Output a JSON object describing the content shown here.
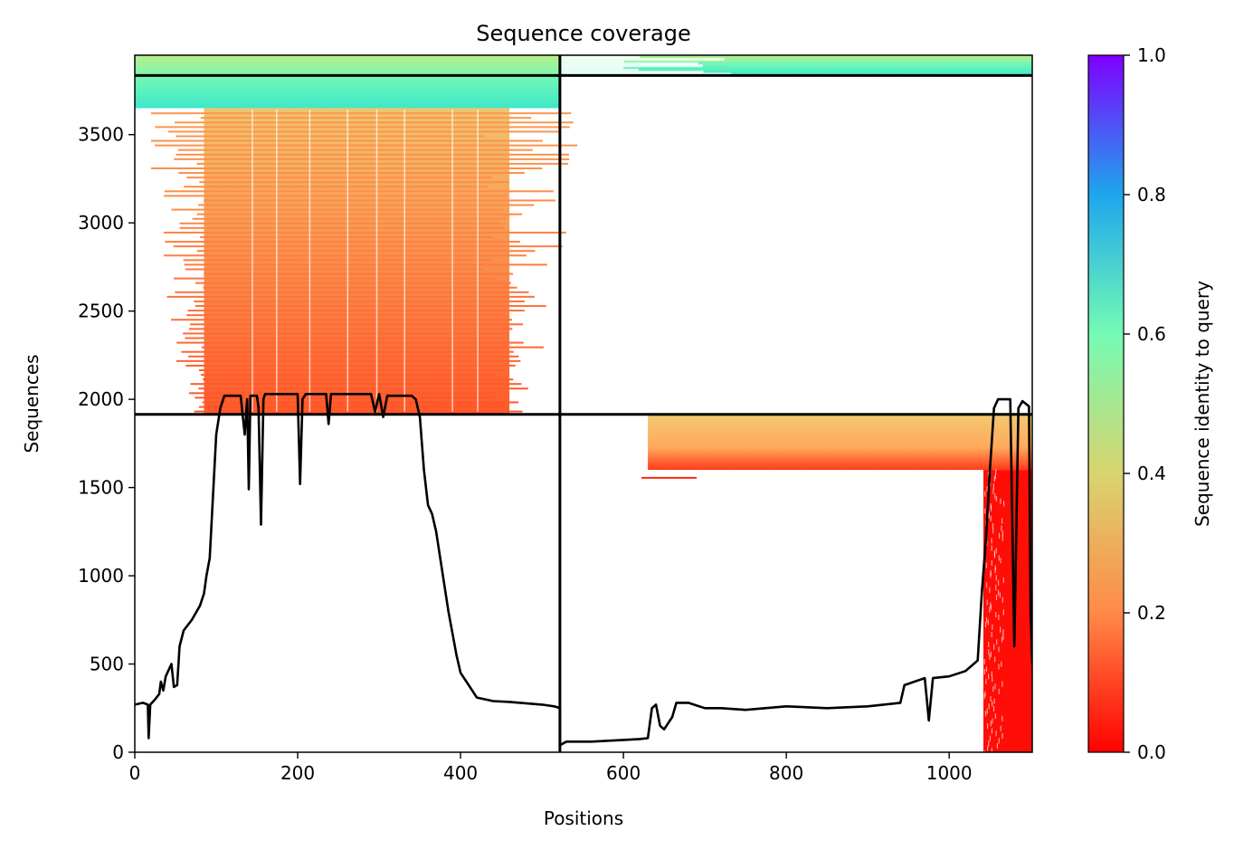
{
  "chart_data": {
    "type": "heatmap",
    "title": "Sequence coverage",
    "xlabel": "Positions",
    "ylabel": "Sequences",
    "colorbar_label": "Sequence identity to query",
    "xlim": [
      0,
      1102
    ],
    "ylim": [
      0,
      3950
    ],
    "x_ticks": [
      0,
      200,
      400,
      600,
      800,
      1000
    ],
    "y_ticks": [
      0,
      500,
      1000,
      1500,
      2000,
      2500,
      3000,
      3500
    ],
    "colorbar_range": [
      0,
      1
    ],
    "colorbar_ticks": [
      0.0,
      0.2,
      0.4,
      0.6,
      0.8,
      1.0
    ],
    "colormap": "rainbow_r",
    "colormap_stops": [
      "#ff0000",
      "#ff8a47",
      "#d9d46e",
      "#74fbb4",
      "#1ea6ed",
      "#7f00ff"
    ],
    "divider_lines": {
      "vertical_x": 522,
      "horizontal_y": [
        1915,
        3835
      ]
    },
    "coverage_blocks": [
      {
        "name": "top-left high identity",
        "x_range": [
          0,
          522
        ],
        "y_range": [
          3650,
          3950
        ],
        "identity": 0.58
      },
      {
        "name": "top-right high identity",
        "x_range": [
          522,
          1102
        ],
        "y_range": [
          3835,
          3950
        ],
        "identity": 0.52
      },
      {
        "name": "domain-1 alignments",
        "x_range": [
          85,
          460
        ],
        "y_range": [
          1915,
          3650
        ],
        "identity": 0.18
      },
      {
        "name": "domain-2 upper alignments",
        "x_range": [
          630,
          1102
        ],
        "y_range": [
          1600,
          1915
        ],
        "identity": 0.24
      },
      {
        "name": "domain-2 lower alignments",
        "x_range": [
          1042,
          1102
        ],
        "y_range": [
          0,
          1600
        ],
        "identity": 0.02
      }
    ],
    "coverage_line": {
      "name": "coverage",
      "points": [
        [
          0,
          270
        ],
        [
          10,
          280
        ],
        [
          16,
          270
        ],
        [
          17,
          80
        ],
        [
          19,
          270
        ],
        [
          25,
          300
        ],
        [
          30,
          330
        ],
        [
          32,
          400
        ],
        [
          35,
          350
        ],
        [
          38,
          430
        ],
        [
          45,
          500
        ],
        [
          48,
          370
        ],
        [
          52,
          380
        ],
        [
          55,
          600
        ],
        [
          60,
          690
        ],
        [
          70,
          750
        ],
        [
          75,
          790
        ],
        [
          80,
          830
        ],
        [
          85,
          900
        ],
        [
          88,
          1000
        ],
        [
          92,
          1100
        ],
        [
          100,
          1800
        ],
        [
          105,
          1950
        ],
        [
          110,
          2020
        ],
        [
          130,
          2020
        ],
        [
          135,
          1800
        ],
        [
          138,
          2000
        ],
        [
          140,
          1490
        ],
        [
          142,
          2020
        ],
        [
          150,
          2020
        ],
        [
          152,
          1950
        ],
        [
          155,
          1290
        ],
        [
          158,
          2000
        ],
        [
          160,
          2030
        ],
        [
          200,
          2030
        ],
        [
          203,
          1520
        ],
        [
          206,
          2000
        ],
        [
          210,
          2030
        ],
        [
          235,
          2030
        ],
        [
          238,
          1860
        ],
        [
          241,
          2030
        ],
        [
          290,
          2030
        ],
        [
          295,
          1930
        ],
        [
          300,
          2030
        ],
        [
          305,
          1900
        ],
        [
          310,
          2020
        ],
        [
          340,
          2020
        ],
        [
          345,
          2000
        ],
        [
          350,
          1900
        ],
        [
          355,
          1600
        ],
        [
          360,
          1400
        ],
        [
          365,
          1350
        ],
        [
          370,
          1250
        ],
        [
          375,
          1100
        ],
        [
          380,
          950
        ],
        [
          385,
          800
        ],
        [
          395,
          550
        ],
        [
          400,
          450
        ],
        [
          410,
          380
        ],
        [
          420,
          310
        ],
        [
          440,
          290
        ],
        [
          460,
          285
        ],
        [
          500,
          270
        ],
        [
          515,
          260
        ],
        [
          522,
          250
        ],
        [
          522,
          40
        ],
        [
          530,
          60
        ],
        [
          560,
          60
        ],
        [
          600,
          70
        ],
        [
          620,
          75
        ],
        [
          630,
          80
        ],
        [
          635,
          250
        ],
        [
          640,
          270
        ],
        [
          645,
          150
        ],
        [
          650,
          130
        ],
        [
          660,
          200
        ],
        [
          665,
          280
        ],
        [
          680,
          280
        ],
        [
          700,
          250
        ],
        [
          720,
          250
        ],
        [
          750,
          240
        ],
        [
          800,
          260
        ],
        [
          850,
          250
        ],
        [
          900,
          260
        ],
        [
          940,
          280
        ],
        [
          945,
          380
        ],
        [
          970,
          420
        ],
        [
          975,
          180
        ],
        [
          980,
          420
        ],
        [
          1000,
          430
        ],
        [
          1020,
          460
        ],
        [
          1035,
          520
        ],
        [
          1040,
          900
        ],
        [
          1045,
          1200
        ],
        [
          1050,
          1600
        ],
        [
          1055,
          1950
        ],
        [
          1060,
          2000
        ],
        [
          1075,
          2000
        ],
        [
          1080,
          600
        ],
        [
          1085,
          1950
        ],
        [
          1090,
          1990
        ],
        [
          1098,
          1960
        ],
        [
          1100,
          800
        ],
        [
          1102,
          500
        ]
      ]
    }
  }
}
